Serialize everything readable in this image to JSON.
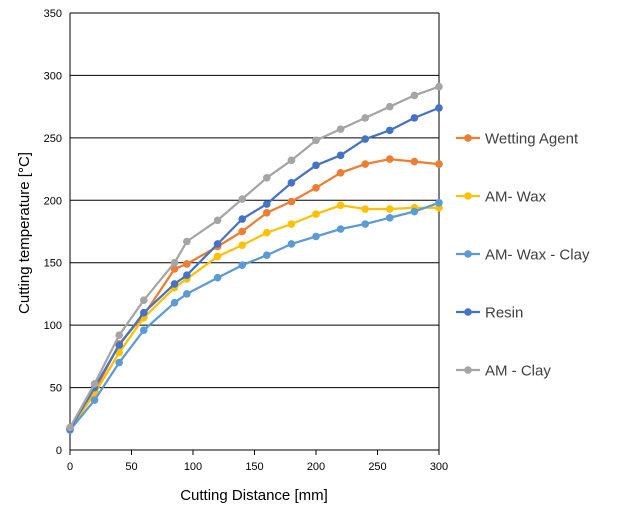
{
  "chart_data": {
    "type": "line",
    "title": "",
    "xlabel": "Cutting Distance [mm]",
    "ylabel": "Cutting temperature [°C]",
    "xlim": [
      0,
      300
    ],
    "ylim": [
      0,
      350
    ],
    "xticks": [
      0,
      50,
      100,
      150,
      200,
      250,
      300
    ],
    "yticks": [
      0,
      50,
      100,
      150,
      200,
      250,
      300,
      350
    ],
    "grid": "horizontal",
    "legend_position": "right",
    "x": [
      0,
      20,
      40,
      60,
      85,
      95,
      120,
      140,
      160,
      180,
      200,
      220,
      240,
      260,
      280,
      300
    ],
    "series": [
      {
        "name": "Wetting Agent",
        "color": "#ED7D31",
        "values": [
          17,
          47,
          85,
          108,
          145,
          149,
          163,
          175,
          190,
          199,
          210,
          222,
          229,
          233,
          231,
          229
        ]
      },
      {
        "name": "AM- Wax",
        "color": "#FFC000",
        "values": [
          17,
          45,
          78,
          106,
          130,
          137,
          155,
          164,
          174,
          181,
          189,
          196,
          193,
          193,
          194,
          194
        ]
      },
      {
        "name": "AM- Wax - Clay",
        "color": "#5B9BD5",
        "values": [
          16,
          40,
          70,
          96,
          118,
          125,
          138,
          148,
          156,
          165,
          171,
          177,
          181,
          186,
          191,
          198
        ]
      },
      {
        "name": "Resin",
        "color": "#4472C4",
        "values": [
          17,
          50,
          84,
          110,
          133,
          140,
          165,
          185,
          197,
          214,
          228,
          236,
          249,
          256,
          266,
          274
        ]
      },
      {
        "name": "AM - Clay",
        "color": "#A5A5A5",
        "values": [
          18,
          53,
          92,
          120,
          150,
          167,
          184,
          201,
          218,
          232,
          248,
          257,
          266,
          275,
          284,
          291
        ]
      }
    ]
  }
}
